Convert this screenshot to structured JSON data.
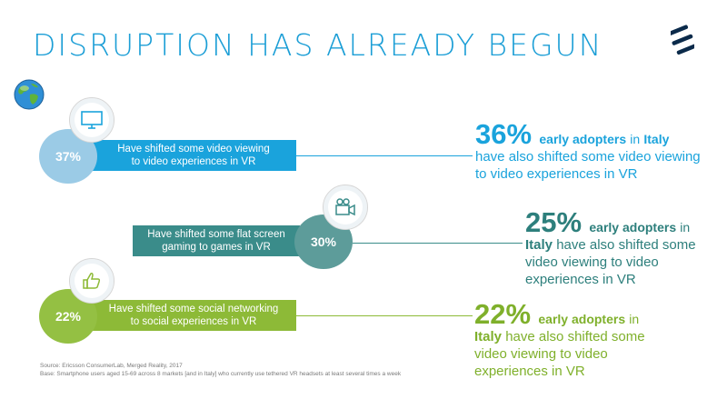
{
  "title": "DISRUPTION HAS ALREADY BEGUN",
  "colors": {
    "blue": "#1aa3dc",
    "teal": "#3a8c8a",
    "green": "#8dba37",
    "light_blue": "#9bcbe6",
    "light_green": "#b7d77a"
  },
  "items": [
    {
      "circle_value": "37%",
      "bar_text_1": "Have shifted some video viewing",
      "bar_text_2": "to video experiences in VR",
      "icon": "monitor-icon",
      "stat_pct": "36%",
      "stat_ea": "early adopters",
      "stat_in": "in",
      "stat_country": "Italy",
      "stat_rest": "have also shifted some video viewing to video experiences in VR"
    },
    {
      "circle_value": "30%",
      "bar_text_1": "Have shifted some flat screen",
      "bar_text_2": "gaming to games in VR",
      "icon": "video-camera-icon",
      "stat_pct": "25%",
      "stat_ea": "early adopters",
      "stat_in": "in",
      "stat_country": "Italy",
      "stat_rest": "have also shifted some video viewing to video experiences in VR"
    },
    {
      "circle_value": "22%",
      "bar_text_1": "Have shifted some social networking",
      "bar_text_2": "to social experiences in VR",
      "icon": "thumbs-up-icon",
      "stat_pct": "22%",
      "stat_ea": "early adopters",
      "stat_in": "in",
      "stat_country": "Italy",
      "stat_rest": "have also shifted some video viewing to video experiences in VR"
    }
  ],
  "source_line_1": "Source:  Ericsson ConsumerLab,  Merged  Reality, 2017",
  "source_line_2": "Base: Smartphone  users aged  15-69  across 8 markets [and in Italy] who  currently  use tethered VR headsets at least several  times a week"
}
